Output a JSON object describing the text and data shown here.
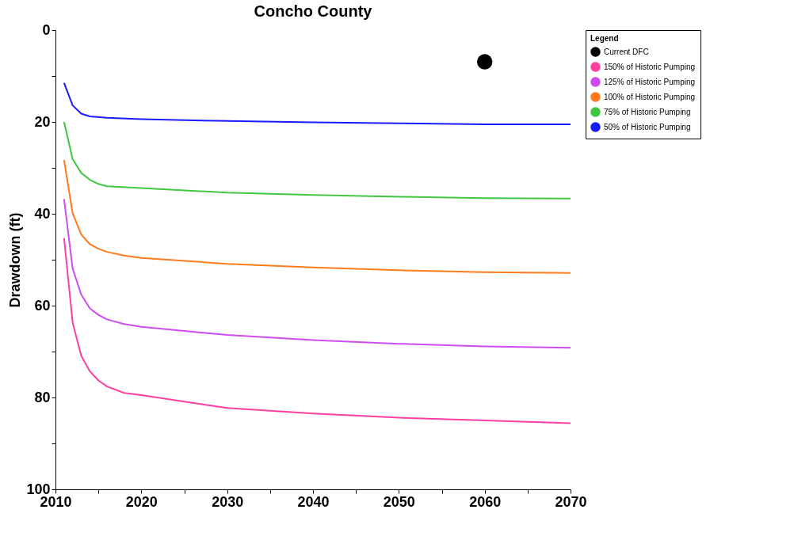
{
  "chart_data": {
    "type": "line",
    "title": "Concho County",
    "ylabel": "Drawdown (ft)",
    "legend_title": "Legend",
    "legend": "right",
    "grid": false,
    "xlim": [
      2010,
      2070
    ],
    "xticks": [
      2010,
      {
        "value": 2015,
        "label": null
      },
      2020,
      {
        "value": 2025,
        "label": null
      },
      2030,
      {
        "value": 2035,
        "label": null
      },
      2040,
      {
        "value": 2045,
        "label": null
      },
      2050,
      {
        "value": 2055,
        "label": null
      },
      2060,
      {
        "value": 2065,
        "label": null
      },
      2070
    ],
    "ylim": [
      100,
      0
    ],
    "yticks": [
      0,
      {
        "value": 10,
        "label": null
      },
      20,
      {
        "value": 30,
        "label": null
      },
      40,
      {
        "value": 50,
        "label": null
      },
      60,
      {
        "value": 70,
        "label": null
      },
      80,
      {
        "value": 90,
        "label": null
      },
      100
    ],
    "series": [
      {
        "name": "Current DFC",
        "type": "scatter",
        "marker": "circle",
        "color": "#000000",
        "x": [
          2060
        ],
        "values": [
          6.9
        ]
      },
      {
        "name": "150% of Historic Pumping",
        "color": "#ff3fa0",
        "x": [
          2011,
          2012,
          2013,
          2014,
          2015,
          2016,
          2018,
          2020,
          2030,
          2040,
          2050,
          2060,
          2070
        ],
        "values": [
          45.3,
          63.7,
          70.9,
          74.3,
          76.3,
          77.6,
          79,
          79.5,
          82.3,
          83.5,
          84.4,
          85,
          85.6
        ]
      },
      {
        "name": "125% of Historic Pumping",
        "color": "#cc4cf0",
        "x": [
          2011,
          2012,
          2013,
          2014,
          2015,
          2016,
          2018,
          2020,
          2030,
          2040,
          2050,
          2060,
          2070
        ],
        "values": [
          36.8,
          51.9,
          57.6,
          60.6,
          62.0,
          63,
          64,
          64.6,
          66.4,
          67.5,
          68.3,
          68.9,
          69.2
        ]
      },
      {
        "name": "100% of Historic Pumping",
        "color": "#ff7a1a",
        "x": [
          2011,
          2012,
          2013,
          2014,
          2015,
          2016,
          2018,
          2020,
          2030,
          2040,
          2050,
          2060,
          2070
        ],
        "values": [
          28.3,
          39.9,
          44.5,
          46.6,
          47.6,
          48.3,
          49.1,
          49.6,
          50.9,
          51.7,
          52.3,
          52.7,
          52.9
        ]
      },
      {
        "name": "75% of Historic Pumping",
        "color": "#3fc83f",
        "x": [
          2011,
          2012,
          2013,
          2014,
          2015,
          2016,
          2020,
          2030,
          2040,
          2050,
          2060,
          2070
        ],
        "values": [
          20,
          28.1,
          31.1,
          32.6,
          33.5,
          34,
          34.4,
          35.4,
          35.9,
          36.3,
          36.6,
          36.7
        ]
      },
      {
        "name": "50% of Historic Pumping",
        "color": "#1a1aff",
        "x": [
          2011,
          2012,
          2013,
          2014,
          2016,
          2020,
          2030,
          2040,
          2050,
          2060,
          2070
        ],
        "values": [
          11.5,
          16.4,
          18.2,
          18.8,
          19.1,
          19.4,
          19.8,
          20.1,
          20.3,
          20.5,
          20.5
        ]
      }
    ]
  }
}
